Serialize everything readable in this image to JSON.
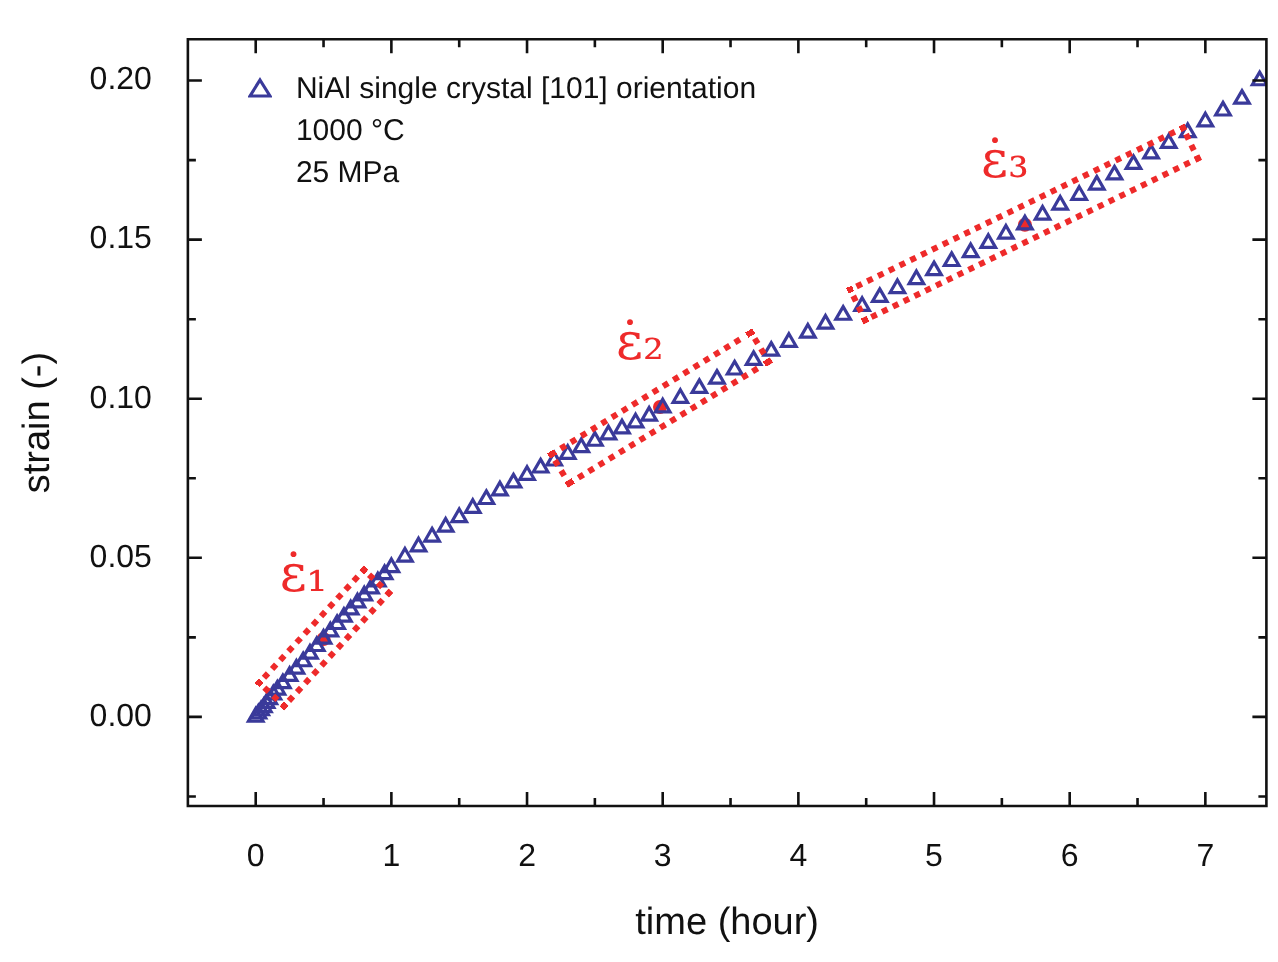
{
  "chart_data": {
    "type": "scatter",
    "xlabel": "time (hour)",
    "ylabel": "strain (-)",
    "xlim": [
      -0.5,
      7.45
    ],
    "ylim": [
      -0.028,
      0.213
    ],
    "xticks": [
      0,
      {
        "value": 0.5,
        "label": null
      },
      1,
      {
        "value": 1.5,
        "label": null
      },
      2,
      {
        "value": 2.5,
        "label": null
      },
      3,
      {
        "value": 3.5,
        "label": null
      },
      4,
      {
        "value": 4.5,
        "label": null
      },
      5,
      {
        "value": 5.5,
        "label": null
      },
      6,
      {
        "value": 6.5,
        "label": null
      },
      7
    ],
    "yticks": [
      {
        "value": -0.025,
        "label": null
      },
      {
        "value": 0,
        "label": "0.00"
      },
      {
        "value": 0.025,
        "label": null
      },
      {
        "value": 0.05,
        "label": "0.05"
      },
      {
        "value": 0.075,
        "label": null
      },
      {
        "value": 0.1,
        "label": "0.10"
      },
      {
        "value": 0.125,
        "label": null
      },
      {
        "value": 0.15,
        "label": "0.15"
      },
      {
        "value": 0.175,
        "label": null
      },
      {
        "value": 0.2,
        "label": "0.20"
      }
    ],
    "legend": "top left",
    "marker": "triangle",
    "series": [
      {
        "name": "NiAl single crystal [101] orientation",
        "color": "#3a3a9a",
        "x": [
          0,
          0.02,
          0.04,
          0.06,
          0.08,
          0.1,
          0.13,
          0.16,
          0.2,
          0.25,
          0.3,
          0.35,
          0.4,
          0.45,
          0.5,
          0.55,
          0.6,
          0.65,
          0.7,
          0.75,
          0.8,
          0.85,
          0.9,
          0.95,
          1.0,
          1.1,
          1.2,
          1.3,
          1.4,
          1.5,
          1.6,
          1.7,
          1.8,
          1.9,
          2.0,
          2.1,
          2.2,
          2.3,
          2.4,
          2.5,
          2.6,
          2.7,
          2.8,
          2.9,
          3.0,
          3.13,
          3.27,
          3.4,
          3.53,
          3.67,
          3.8,
          3.93,
          4.07,
          4.2,
          4.33,
          4.47,
          4.6,
          4.73,
          4.87,
          5.0,
          5.13,
          5.27,
          5.4,
          5.53,
          5.67,
          5.8,
          5.93,
          6.07,
          6.2,
          6.33,
          6.47,
          6.6,
          6.73,
          6.87,
          7.0,
          7.13,
          7.27,
          7.4
        ],
        "values": [
          0,
          0.001,
          0.002,
          0.003,
          0.0043,
          0.0055,
          0.007,
          0.0085,
          0.0105,
          0.0128,
          0.0151,
          0.0174,
          0.0198,
          0.0222,
          0.0245,
          0.0268,
          0.0291,
          0.0314,
          0.0337,
          0.0359,
          0.0381,
          0.0403,
          0.0425,
          0.0448,
          0.047,
          0.0503,
          0.0535,
          0.0566,
          0.0597,
          0.0627,
          0.0656,
          0.0684,
          0.0711,
          0.0736,
          0.076,
          0.0783,
          0.0805,
          0.0826,
          0.0847,
          0.0867,
          0.0887,
          0.0906,
          0.0925,
          0.0946,
          0.0972,
          0.1002,
          0.1033,
          0.1062,
          0.1091,
          0.1121,
          0.115,
          0.1178,
          0.1207,
          0.1235,
          0.1263,
          0.1291,
          0.1319,
          0.1347,
          0.1375,
          0.1403,
          0.1432,
          0.146,
          0.1489,
          0.1518,
          0.1547,
          0.1578,
          0.1609,
          0.164,
          0.1672,
          0.1704,
          0.1737,
          0.177,
          0.1803,
          0.1837,
          0.1871,
          0.1905,
          0.1942,
          0.2
        ]
      }
    ],
    "annotations": [
      {
        "text": "ε̇₁",
        "x": 0.5,
        "y": 0.0245
      },
      {
        "text": "ε̇₂",
        "x": 2.98,
        "y": 0.0974
      },
      {
        "text": "ε̇₃",
        "x": 5.67,
        "y": 0.1547
      },
      "1000 °C",
      "25 MPa"
    ]
  }
}
